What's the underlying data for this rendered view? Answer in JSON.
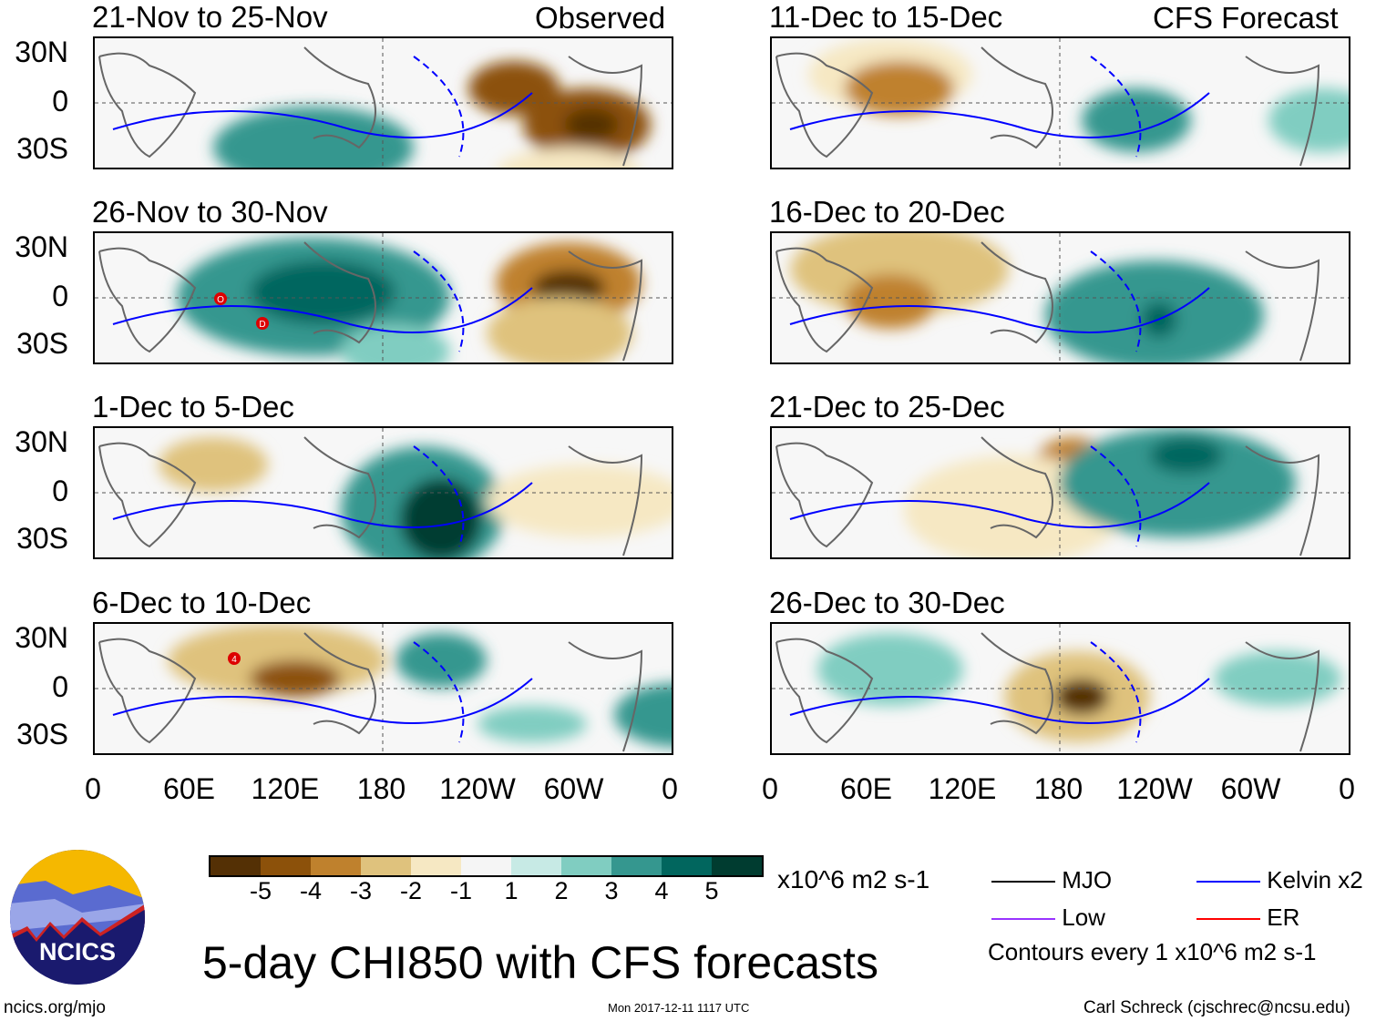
{
  "headers": {
    "observed": "Observed",
    "forecast": "CFS Forecast"
  },
  "panels": {
    "left": [
      "21-Nov to 25-Nov",
      "26-Nov to 30-Nov",
      "1-Dec to 5-Dec",
      "6-Dec to 10-Dec"
    ],
    "right": [
      "11-Dec to 15-Dec",
      "16-Dec to 20-Dec",
      "21-Dec to 25-Dec",
      "26-Dec to 30-Dec"
    ]
  },
  "storm_labels": [
    "O",
    "D",
    "4"
  ],
  "lat_labels": [
    "30N",
    "0",
    "30S"
  ],
  "lon_labels": [
    "0",
    "60E",
    "120E",
    "180",
    "120W",
    "60W",
    "0"
  ],
  "colorbar": {
    "colors": [
      "#543005",
      "#8c510a",
      "#bf812d",
      "#dfc27d",
      "#f6e8c3",
      "#f5f5f5",
      "#c7eae5",
      "#80cdc1",
      "#35978f",
      "#01665e",
      "#003c30"
    ],
    "labels": [
      "-5",
      "-4",
      "-3",
      "-2",
      "-1",
      "1",
      "2",
      "3",
      "4",
      "5"
    ],
    "units": "x10^6 m2 s-1"
  },
  "legend": {
    "items": [
      {
        "label": "MJO",
        "color": "#000000"
      },
      {
        "label": "Kelvin x2",
        "color": "#0000ff"
      },
      {
        "label": "Low",
        "color": "#9933ff"
      },
      {
        "label": "ER",
        "color": "#ff0000"
      }
    ],
    "note": "Contours every 1 x10^6 m2 s-1"
  },
  "title": "5-day CHI850 with CFS forecasts",
  "logo_text": "NCICS",
  "footer": {
    "url": "ncics.org/mjo",
    "timestamp": "Mon 2017-12-11 1117 UTC",
    "author": "Carl Schreck (cjschrec@ncsu.edu)"
  }
}
